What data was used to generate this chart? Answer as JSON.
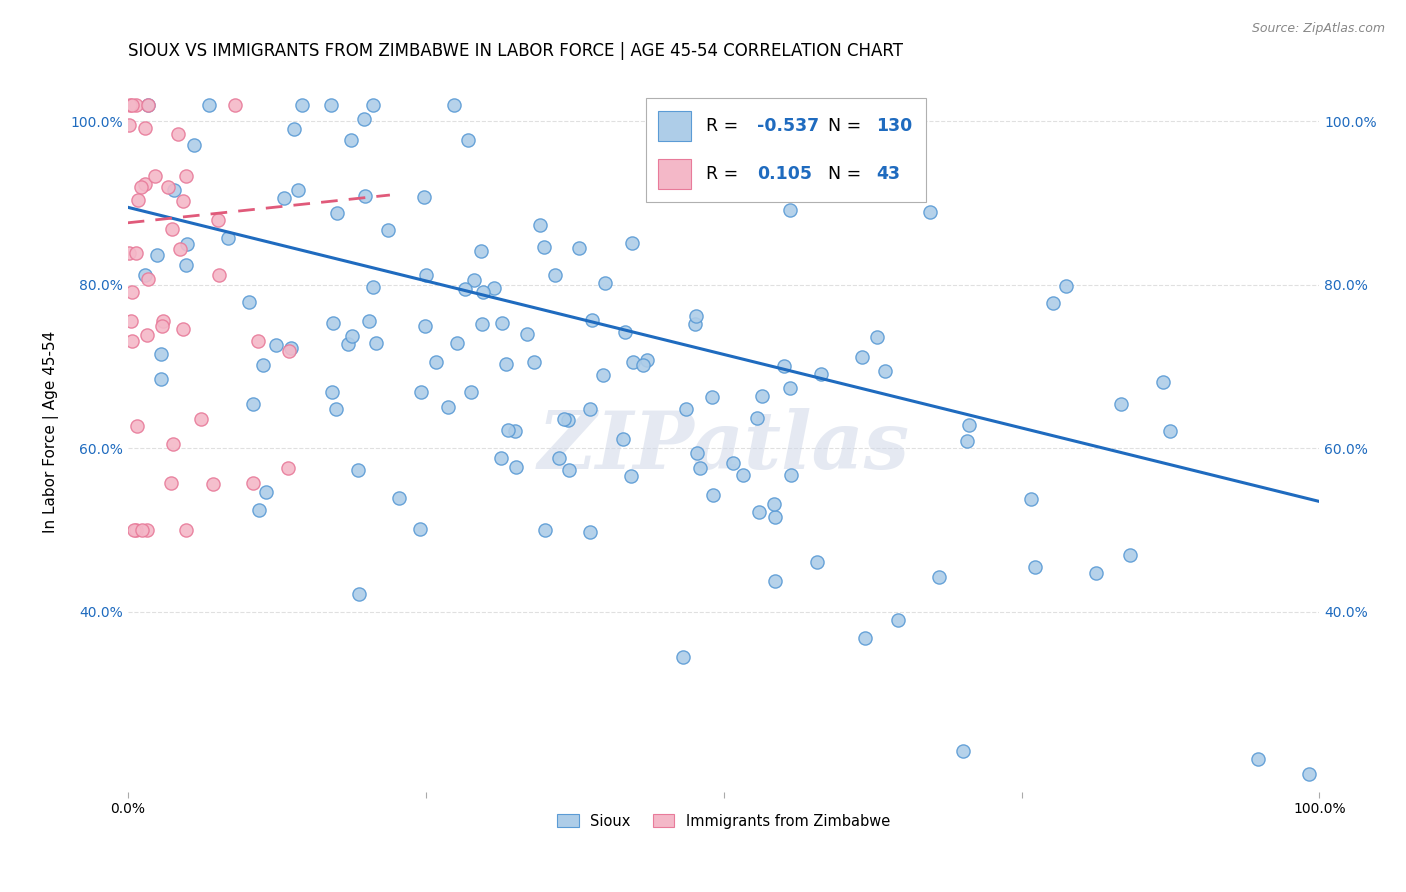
{
  "title": "SIOUX VS IMMIGRANTS FROM ZIMBABWE IN LABOR FORCE | AGE 45-54 CORRELATION CHART",
  "source": "Source: ZipAtlas.com",
  "ylabel": "In Labor Force | Age 45-54",
  "xlim": [
    0.0,
    1.0
  ],
  "ylim": [
    0.18,
    1.06
  ],
  "yticks": [
    0.4,
    0.6,
    0.8,
    1.0
  ],
  "yticklabels": [
    "40.0%",
    "60.0%",
    "80.0%",
    "100.0%"
  ],
  "blue_R": -0.537,
  "blue_N": 130,
  "pink_R": 0.105,
  "pink_N": 43,
  "blue_color": "#aecde8",
  "pink_color": "#f4b8c8",
  "blue_edge_color": "#5b9bd5",
  "pink_edge_color": "#e87b9a",
  "blue_line_color": "#1f6bbf",
  "pink_line_color": "#e05a7a",
  "watermark": "ZIPatlas",
  "legend_labels": [
    "Sioux",
    "Immigrants from Zimbabwe"
  ],
  "background_color": "#ffffff",
  "grid_color": "#e0e0e0",
  "title_fontsize": 12,
  "axis_label_fontsize": 11,
  "tick_fontsize": 10,
  "blue_line_x": [
    0.0,
    1.0
  ],
  "blue_line_y": [
    0.895,
    0.535
  ],
  "pink_line_x": [
    0.0,
    0.22
  ],
  "pink_line_y": [
    0.876,
    0.91
  ]
}
